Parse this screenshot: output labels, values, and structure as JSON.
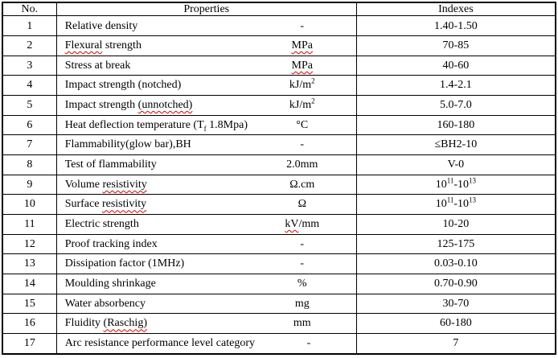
{
  "table": {
    "border_color": "#000000",
    "squiggle_color": "#dd0000",
    "text_color": "#000000",
    "background_color": "#ffffff",
    "header": {
      "no": "No.",
      "properties": "Properties",
      "indexes": "Indexes"
    },
    "rows": [
      {
        "no": "1",
        "property": [
          {
            "t": "Relative density"
          }
        ],
        "unit": [
          {
            "t": "-"
          }
        ],
        "index": [
          {
            "t": "1.40-1.50"
          }
        ]
      },
      {
        "no": "2",
        "property": [
          {
            "t": "Flexural",
            "wavy": true
          },
          {
            "t": " strength"
          }
        ],
        "unit": [
          {
            "t": "MPa",
            "wavy": true
          }
        ],
        "index": [
          {
            "t": "70-85"
          }
        ]
      },
      {
        "no": "3",
        "property": [
          {
            "t": "Stress at break"
          }
        ],
        "unit": [
          {
            "t": "MPa",
            "wavy": true
          }
        ],
        "index": [
          {
            "t": "40-60"
          }
        ]
      },
      {
        "no": "4",
        "property": [
          {
            "t": "Impact strength (notched)"
          }
        ],
        "unit": [
          {
            "t": "kJ/m"
          },
          {
            "t": "2",
            "sup": true
          }
        ],
        "index": [
          {
            "t": "1.4-2.1"
          }
        ]
      },
      {
        "no": "5",
        "property": [
          {
            "t": "Impact strength "
          },
          {
            "t": "(unnotched)",
            "wavy": true
          }
        ],
        "unit": [
          {
            "t": "kJ/m"
          },
          {
            "t": "2",
            "sup": true
          }
        ],
        "index": [
          {
            "t": "5.0-7.0"
          }
        ]
      },
      {
        "no": "6",
        "property": [
          {
            "t": "Heat deflection temperature (T"
          },
          {
            "t": "f",
            "sub": true,
            "wavy": true
          },
          {
            "t": " 1.8Mpa)"
          }
        ],
        "unit": [
          {
            "t": "°C"
          }
        ],
        "index": [
          {
            "t": "160-180"
          }
        ]
      },
      {
        "no": "7",
        "property": [
          {
            "t": "Flammability(glow bar),BH"
          }
        ],
        "unit": [
          {
            "t": "-"
          }
        ],
        "index": [
          {
            "t": "≤BH2-10"
          }
        ]
      },
      {
        "no": "8",
        "property": [
          {
            "t": "Test of flammability"
          }
        ],
        "unit": [
          {
            "t": "2.0mm"
          }
        ],
        "index": [
          {
            "t": "V-0"
          }
        ]
      },
      {
        "no": "9",
        "property": [
          {
            "t": "Volume "
          },
          {
            "t": "resistivity",
            "wavy": true
          }
        ],
        "unit": [
          {
            "t": "Ω.cm"
          }
        ],
        "index": [
          {
            "t": "10"
          },
          {
            "t": "11",
            "sup": true
          },
          {
            "t": "-10"
          },
          {
            "t": "13",
            "sup": true
          }
        ]
      },
      {
        "no": "10",
        "property": [
          {
            "t": "Surface "
          },
          {
            "t": "resistivity",
            "wavy": true
          }
        ],
        "unit": [
          {
            "t": "Ω"
          }
        ],
        "index": [
          {
            "t": "10"
          },
          {
            "t": "11",
            "sup": true
          },
          {
            "t": "-10"
          },
          {
            "t": "13",
            "sup": true
          }
        ]
      },
      {
        "no": "11",
        "property": [
          {
            "t": "Electric strength"
          }
        ],
        "unit": [
          {
            "t": "kV",
            "wavy": true
          },
          {
            "t": "/mm"
          }
        ],
        "index": [
          {
            "t": "10-20"
          }
        ]
      },
      {
        "no": "12",
        "property": [
          {
            "t": "Proof tracking index"
          }
        ],
        "unit": [
          {
            "t": "-"
          }
        ],
        "index": [
          {
            "t": "125-175"
          }
        ]
      },
      {
        "no": "13",
        "property": [
          {
            "t": "Dissipation factor (1MHz)"
          }
        ],
        "unit": [
          {
            "t": "-"
          }
        ],
        "index": [
          {
            "t": "0.03-0.10"
          }
        ]
      },
      {
        "no": "14",
        "property": [
          {
            "t": "Moulding shrinkage"
          }
        ],
        "unit": [
          {
            "t": "%"
          }
        ],
        "index": [
          {
            "t": "0.70-0.90"
          }
        ]
      },
      {
        "no": "15",
        "property": [
          {
            "t": "Water absorbency"
          }
        ],
        "unit": [
          {
            "t": "mg"
          }
        ],
        "index": [
          {
            "t": "30-70"
          }
        ]
      },
      {
        "no": "16",
        "property": [
          {
            "t": "Fluidity "
          },
          {
            "t": "(Raschig)",
            "wavy": true
          }
        ],
        "unit": [
          {
            "t": "mm"
          }
        ],
        "index": [
          {
            "t": "60-180"
          }
        ]
      },
      {
        "no": "17",
        "property": [
          {
            "t": "Arc resistance performance level category"
          }
        ],
        "unit": [
          {
            "t": "-"
          }
        ],
        "index": [
          {
            "t": "7"
          }
        ]
      }
    ]
  },
  "chart_data": {
    "type": "table",
    "columns": [
      "No.",
      "Property",
      "Unit",
      "Indexes"
    ],
    "header_note": "Property and Unit share the merged 'Properties' header column",
    "rows": [
      [
        "1",
        "Relative density",
        "-",
        "1.40-1.50"
      ],
      [
        "2",
        "Flexural strength",
        "MPa",
        "70-85"
      ],
      [
        "3",
        "Stress at break",
        "MPa",
        "40-60"
      ],
      [
        "4",
        "Impact strength (notched)",
        "kJ/m²",
        "1.4-2.1"
      ],
      [
        "5",
        "Impact strength (unnotched)",
        "kJ/m²",
        "5.0-7.0"
      ],
      [
        "6",
        "Heat deflection temperature (Tf 1.8Mpa)",
        "°C",
        "160-180"
      ],
      [
        "7",
        "Flammability(glow bar),BH",
        "-",
        "≤BH2-10"
      ],
      [
        "8",
        "Test of flammability",
        "2.0mm",
        "V-0"
      ],
      [
        "9",
        "Volume resistivity",
        "Ω.cm",
        "10¹¹-10¹³"
      ],
      [
        "10",
        "Surface resistivity",
        "Ω",
        "10¹¹-10¹³"
      ],
      [
        "11",
        "Electric strength",
        "kV/mm",
        "10-20"
      ],
      [
        "12",
        "Proof tracking index",
        "-",
        "125-175"
      ],
      [
        "13",
        "Dissipation factor (1MHz)",
        "-",
        "0.03-0.10"
      ],
      [
        "14",
        "Moulding shrinkage",
        "%",
        "0.70-0.90"
      ],
      [
        "15",
        "Water absorbency",
        "mg",
        "30-70"
      ],
      [
        "16",
        "Fluidity (Raschig)",
        "mm",
        "60-180"
      ],
      [
        "17",
        "Arc resistance performance level category",
        "-",
        "7"
      ]
    ]
  }
}
